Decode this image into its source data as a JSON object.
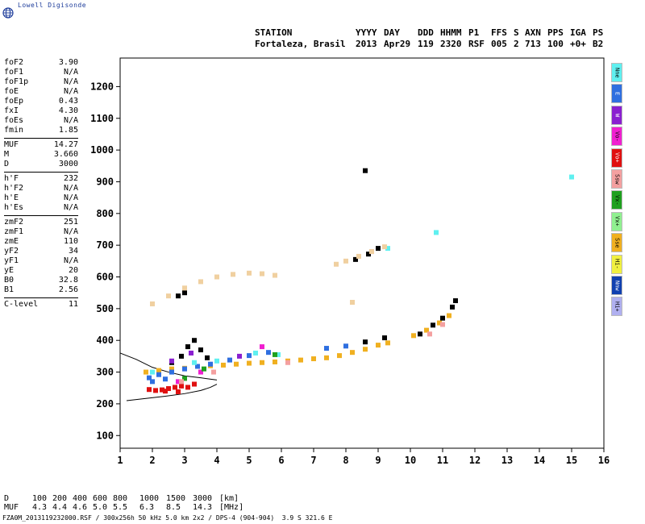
{
  "logo": {
    "text": "Lowell Digisonde",
    "icon": "globe-icon"
  },
  "header": {
    "labels": [
      "STATION",
      "YYYY",
      "DAY",
      "DDD",
      "HHMM",
      "P1",
      "FFS",
      "S",
      "AXN",
      "PPS",
      "IGA",
      "PS"
    ],
    "values": [
      "Fortaleza, Brasil",
      "2013",
      "Apr29",
      "119",
      "2320",
      "RSF",
      "005",
      "2",
      "713",
      "100",
      "+0+",
      "B2"
    ]
  },
  "params": [
    [
      {
        "label": "foF2",
        "value": "3.90"
      },
      {
        "label": "foF1",
        "value": "N/A"
      },
      {
        "label": "foF1p",
        "value": "N/A"
      },
      {
        "label": "foE",
        "value": "N/A"
      },
      {
        "label": "foEp",
        "value": "0.43"
      },
      {
        "label": "fxI",
        "value": "4.30"
      },
      {
        "label": "foEs",
        "value": "N/A"
      },
      {
        "label": "fmin",
        "value": "1.85"
      }
    ],
    [
      {
        "label": "MUF",
        "value": "14.27"
      },
      {
        "label": "M",
        "value": "3.660"
      },
      {
        "label": "D",
        "value": "3000"
      }
    ],
    [
      {
        "label": "h'F",
        "value": "232"
      },
      {
        "label": "h'F2",
        "value": "N/A"
      },
      {
        "label": "h'E",
        "value": "N/A"
      },
      {
        "label": "h'Es",
        "value": "N/A"
      }
    ],
    [
      {
        "label": "zmF2",
        "value": "251"
      },
      {
        "label": "zmF1",
        "value": "N/A"
      },
      {
        "label": "zmE",
        "value": "110"
      },
      {
        "label": "yF2",
        "value": "34"
      },
      {
        "label": "yF1",
        "value": "N/A"
      },
      {
        "label": "yE",
        "value": "20"
      },
      {
        "label": "B0",
        "value": "32.8"
      },
      {
        "label": "B1",
        "value": "2.56"
      }
    ],
    [
      {
        "label": "C-level",
        "value": "11"
      }
    ]
  ],
  "legend": [
    {
      "label": "Nne",
      "color": "#5ff0f0"
    },
    {
      "label": "E",
      "color": "#2f6fe0"
    },
    {
      "label": "W",
      "color": "#8a1fd0"
    },
    {
      "label": "Vo-",
      "color": "#f01fd0"
    },
    {
      "label": "Vo+",
      "color": "#e01010"
    },
    {
      "label": "Ssw",
      "color": "#f4a0a0"
    },
    {
      "label": "Vx-",
      "color": "#1fa01f"
    },
    {
      "label": "Vx+",
      "color": "#90f090"
    },
    {
      "label": "Sse",
      "color": "#f0b020"
    },
    {
      "label": "Hi-",
      "color": "#f0f040"
    },
    {
      "label": "Nnw",
      "color": "#1040b0"
    },
    {
      "label": "Hi+",
      "color": "#b0b0f0"
    }
  ],
  "bottom_table": {
    "rows": [
      {
        "head": "D",
        "values": [
          "100",
          "200",
          "400",
          "600",
          "800",
          "1000",
          "1500",
          "3000",
          "[km]"
        ]
      },
      {
        "head": "MUF",
        "values": [
          "4.3",
          "4.4",
          "4.6",
          "5.0",
          "5.5",
          "6.3",
          "8.5",
          "14.3",
          "[MHz]"
        ]
      }
    ]
  },
  "footer": "FZA0M_2013119232000.RSF / 300x256h 50 kHz 5.0 km 2x2 / DPS-4 (904-904)  3.9 S 321.6 E",
  "chart_data": {
    "type": "scatter",
    "xlim": [
      1,
      16
    ],
    "ylim": [
      60,
      1290
    ],
    "xticks": [
      1,
      2,
      3,
      4,
      5,
      6,
      7,
      8,
      9,
      10,
      11,
      12,
      13,
      14,
      15,
      16
    ],
    "yticks": [
      100,
      200,
      300,
      400,
      500,
      600,
      700,
      800,
      900,
      1000,
      1100,
      1200
    ],
    "grid": false,
    "series": [
      {
        "color": "#f0b020",
        "points": [
          [
            1.8,
            300
          ],
          [
            2.2,
            305
          ],
          [
            2.6,
            310
          ],
          [
            3.0,
            312
          ],
          [
            3.4,
            318
          ],
          [
            3.8,
            320
          ],
          [
            4.2,
            322
          ],
          [
            4.6,
            325
          ],
          [
            5.0,
            328
          ],
          [
            5.4,
            330
          ],
          [
            5.8,
            332
          ],
          [
            6.2,
            335
          ],
          [
            6.6,
            338
          ],
          [
            7.0,
            342
          ],
          [
            7.4,
            345
          ],
          [
            7.8,
            352
          ],
          [
            8.2,
            362
          ],
          [
            8.6,
            372
          ],
          [
            9.0,
            385
          ],
          [
            9.3,
            392
          ],
          [
            10.1,
            415
          ],
          [
            10.5,
            432
          ],
          [
            10.9,
            455
          ],
          [
            11.2,
            478
          ]
        ]
      },
      {
        "color": "#e01010",
        "points": [
          [
            1.9,
            245
          ],
          [
            2.1,
            242
          ],
          [
            2.3,
            244
          ],
          [
            2.5,
            248
          ],
          [
            2.7,
            252
          ],
          [
            2.9,
            256
          ],
          [
            3.1,
            252
          ],
          [
            3.3,
            262
          ],
          [
            2.4,
            240
          ],
          [
            2.8,
            238
          ]
        ]
      },
      {
        "color": "#2f6fe0",
        "points": [
          [
            1.9,
            282
          ],
          [
            2.2,
            292
          ],
          [
            2.6,
            300
          ],
          [
            3.0,
            310
          ],
          [
            3.4,
            318
          ],
          [
            3.8,
            325
          ],
          [
            4.4,
            338
          ],
          [
            5.0,
            352
          ],
          [
            5.6,
            362
          ],
          [
            7.4,
            375
          ],
          [
            8.0,
            382
          ],
          [
            2.0,
            270
          ],
          [
            2.4,
            278
          ]
        ]
      },
      {
        "color": "#000000",
        "points": [
          [
            2.6,
            330
          ],
          [
            2.9,
            350
          ],
          [
            3.1,
            380
          ],
          [
            3.3,
            400
          ],
          [
            3.5,
            370
          ],
          [
            3.7,
            345
          ],
          [
            8.6,
            395
          ],
          [
            9.2,
            408
          ],
          [
            10.3,
            420
          ],
          [
            10.7,
            448
          ],
          [
            11.0,
            470
          ],
          [
            11.3,
            505
          ],
          [
            11.4,
            525
          ],
          [
            8.3,
            655
          ],
          [
            8.7,
            672
          ],
          [
            9.0,
            690
          ],
          [
            2.8,
            540
          ],
          [
            3.0,
            550
          ],
          [
            8.6,
            935
          ]
        ]
      },
      {
        "color": "#5ff0f0",
        "points": [
          [
            2.0,
            300
          ],
          [
            3.3,
            330
          ],
          [
            4.0,
            335
          ],
          [
            5.2,
            360
          ],
          [
            5.9,
            355
          ],
          [
            9.3,
            690
          ],
          [
            10.8,
            740
          ],
          [
            15.0,
            915
          ]
        ]
      },
      {
        "color": "#8a1fd0",
        "points": [
          [
            2.6,
            335
          ],
          [
            3.2,
            360
          ],
          [
            4.7,
            350
          ],
          [
            8.8,
            680
          ]
        ]
      },
      {
        "color": "#f01fd0",
        "points": [
          [
            2.8,
            270
          ],
          [
            3.5,
            300
          ],
          [
            5.4,
            380
          ]
        ]
      },
      {
        "color": "#1fa01f",
        "points": [
          [
            3.0,
            280
          ],
          [
            3.6,
            310
          ],
          [
            5.8,
            355
          ]
        ]
      },
      {
        "color": "#f4a0a0",
        "points": [
          [
            2.9,
            270
          ],
          [
            3.9,
            300
          ],
          [
            6.2,
            330
          ],
          [
            10.6,
            420
          ],
          [
            11.0,
            450
          ]
        ]
      },
      {
        "color": "#f0d0a0",
        "points": [
          [
            2.0,
            515
          ],
          [
            2.5,
            540
          ],
          [
            3.0,
            565
          ],
          [
            3.5,
            585
          ],
          [
            4.0,
            600
          ],
          [
            4.5,
            608
          ],
          [
            5.0,
            612
          ],
          [
            5.4,
            610
          ],
          [
            5.8,
            605
          ],
          [
            7.7,
            640
          ],
          [
            8.0,
            650
          ],
          [
            8.4,
            665
          ],
          [
            8.8,
            680
          ],
          [
            9.2,
            695
          ],
          [
            8.2,
            520
          ]
        ]
      }
    ],
    "lines": [
      {
        "name": "upper",
        "points": [
          [
            1.0,
            360
          ],
          [
            1.5,
            340
          ],
          [
            2.0,
            315
          ],
          [
            2.5,
            300
          ],
          [
            3.0,
            288
          ],
          [
            3.5,
            282
          ],
          [
            4.0,
            275
          ]
        ]
      },
      {
        "name": "lower",
        "points": [
          [
            1.2,
            210
          ],
          [
            1.8,
            217
          ],
          [
            2.4,
            224
          ],
          [
            3.0,
            232
          ],
          [
            3.5,
            242
          ],
          [
            3.8,
            252
          ],
          [
            4.0,
            262
          ]
        ]
      }
    ]
  }
}
